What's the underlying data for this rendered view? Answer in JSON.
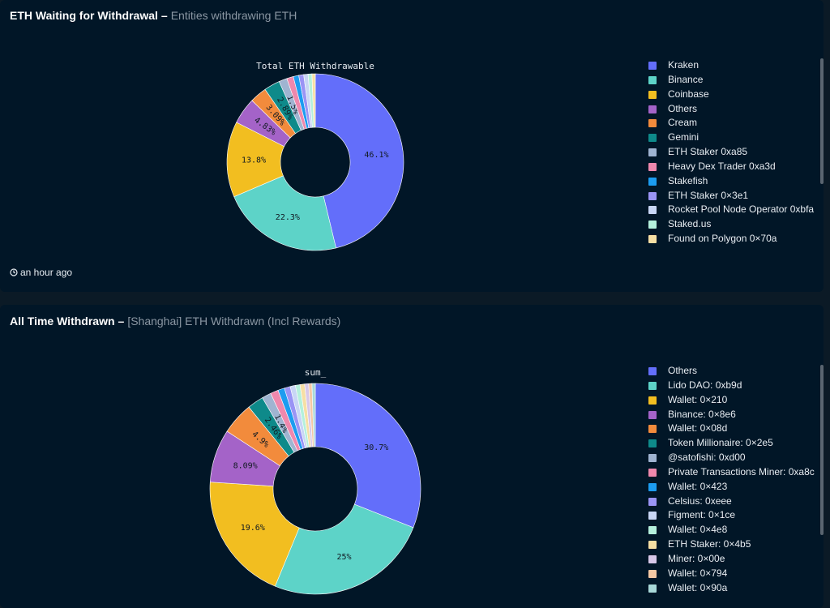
{
  "panel1": {
    "title_main": "ETH Waiting for Withdrawal",
    "title_dash": "–",
    "title_sub": "Entities withdrawing ETH",
    "footer": "an hour ago"
  },
  "panel2": {
    "title_main": "All Time Withdrawn",
    "title_dash": "–",
    "title_sub": "[Shanghai] ETH Withdrawn (Incl Rewards)"
  },
  "chart_data": [
    {
      "type": "pie",
      "title": "Total ETH Withdrawable",
      "categories": [
        "Kraken",
        "Binance",
        "Coinbase",
        "Others",
        "Cream",
        "Gemini",
        "ETH Staker 0xa85",
        "Heavy Dex Trader 0xa3d",
        "Stakefish",
        "ETH Staker 0×3e1",
        "Rocket Pool Node Operator 0xbfa",
        "Staked.us",
        "Found on Polygon 0×70a"
      ],
      "values": [
        46.1,
        22.3,
        13.8,
        4.83,
        3.09,
        2.89,
        1.5,
        1.2,
        1.0,
        0.9,
        0.8,
        0.7,
        0.6
      ],
      "data_labels": [
        "46.1%",
        "22.3%",
        "13.8%",
        "4.83%",
        "3.09%",
        "2.89%",
        "1.5%",
        "",
        "",
        "",
        "",
        "",
        ""
      ],
      "colors": [
        "#636efa",
        "#5dd3c8",
        "#f2be20",
        "#a463c8",
        "#f28b3c",
        "#0e8a8a",
        "#9fb4d1",
        "#ef88ad",
        "#1c9cf0",
        "#9a94f5",
        "#c8d6f5",
        "#b4f0dc",
        "#f6dfa4"
      ],
      "legend_placement": "right"
    },
    {
      "type": "pie",
      "title": "sum_",
      "categories": [
        "Others",
        "Lido DAO: 0xb9d",
        "Wallet: 0×210",
        "Binance: 0×8e6",
        "Wallet: 0×08d",
        "Token Millionaire: 0×2e5",
        "@satofishi: 0xd00",
        "Private Transactions Miner: 0xa8c",
        "Wallet: 0×423",
        "Celsius: 0xeee",
        "Figment: 0×1ce",
        "Wallet: 0×4e8",
        "ETH Staker: 0×4b5",
        "Miner: 0×00e",
        "Wallet: 0×794",
        "Wallet: 0×90a"
      ],
      "values": [
        30.7,
        25,
        19.6,
        8.09,
        4.9,
        2.46,
        1.4,
        1.2,
        1.0,
        0.9,
        0.8,
        0.7,
        0.7,
        0.6,
        0.5,
        0.5
      ],
      "data_labels": [
        "30.7%",
        "25%",
        "19.6%",
        "8.09%",
        "4.9%",
        "2.46%",
        "1.4%",
        "",
        "",
        "",
        "",
        "",
        "",
        "",
        "",
        ""
      ],
      "colors": [
        "#636efa",
        "#5dd3c8",
        "#f2be20",
        "#a463c8",
        "#f28b3c",
        "#0e8a8a",
        "#9fb4d1",
        "#ef88ad",
        "#1c9cf0",
        "#9a94f5",
        "#c8d6f5",
        "#b4f0dc",
        "#f6dfa4",
        "#d8c8e8",
        "#f5c8a4",
        "#a8d8d8"
      ],
      "legend_placement": "right"
    }
  ]
}
